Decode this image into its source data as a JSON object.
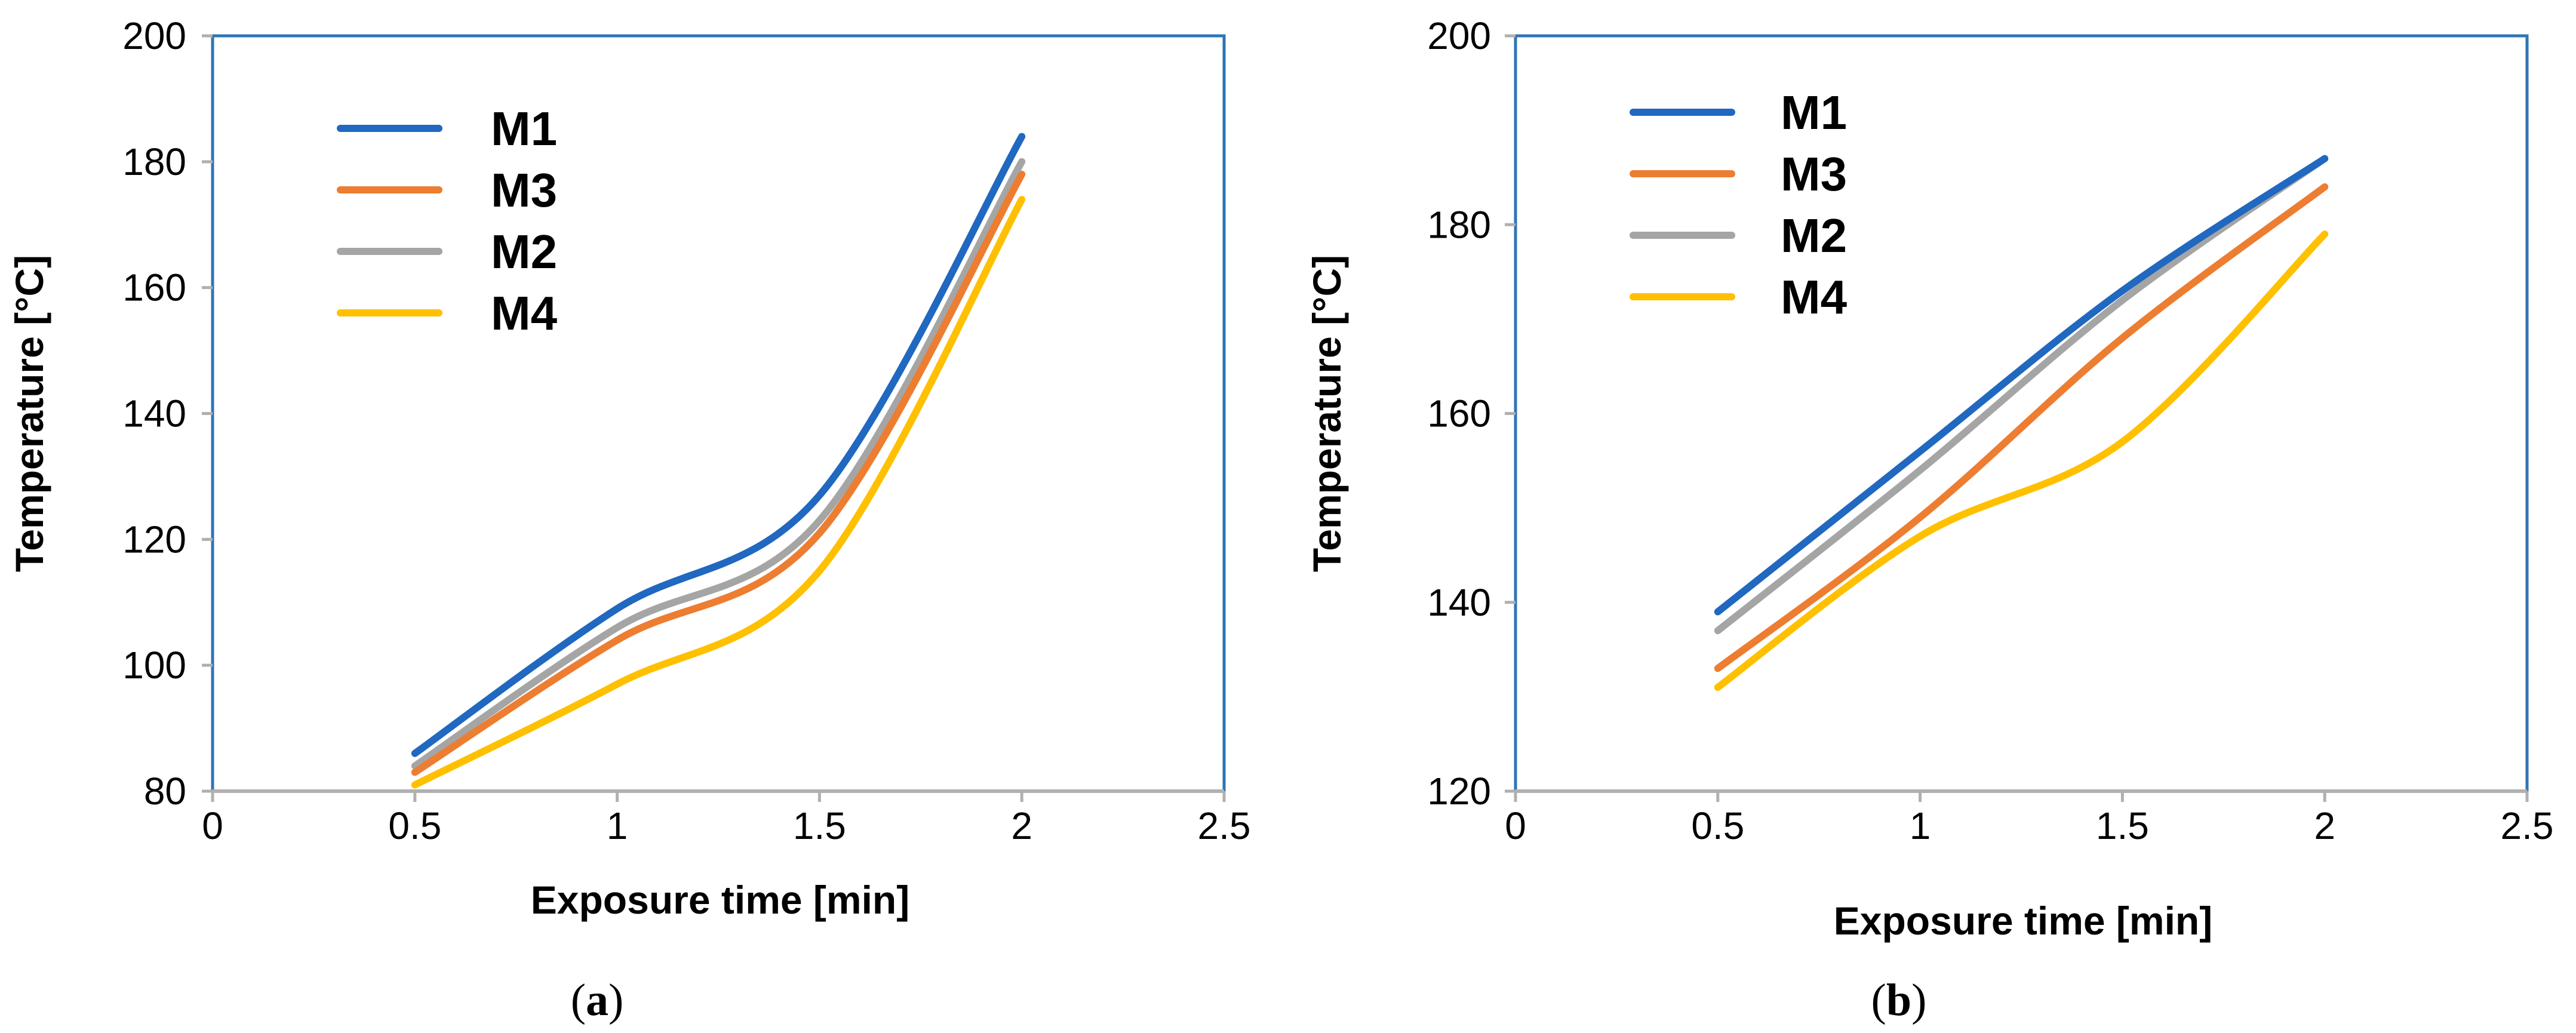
{
  "colors": {
    "frame": "#2E75B6",
    "axis": "#B0B0B0",
    "M1": "#2068C0",
    "M2": "#A5A5A5",
    "M3": "#ED7D31",
    "M4": "#FFC000"
  },
  "chart_data": [
    {
      "type": "line",
      "panel": "a",
      "caption": "(a)",
      "caption_open": "(",
      "caption_letter": "a",
      "caption_close": ")",
      "title": "",
      "xlabel": "Exposure time [min]",
      "ylabel": "Temperature [°C]",
      "xlim": [
        0,
        2.5
      ],
      "ylim": [
        80,
        200
      ],
      "xticks": [
        0,
        0.5,
        1,
        1.5,
        2,
        2.5
      ],
      "xtick_labels": [
        "0",
        "0.5",
        "1",
        "1.5",
        "2",
        "2.5"
      ],
      "yticks": [
        80,
        100,
        120,
        140,
        160,
        180,
        200
      ],
      "ytick_labels": [
        "80",
        "100",
        "120",
        "140",
        "160",
        "180",
        "200"
      ],
      "legend_position": "top-left",
      "legend_order": [
        "M1",
        "M3",
        "M2",
        "M4"
      ],
      "x": [
        0.5,
        1,
        1.5,
        2
      ],
      "series": [
        {
          "name": "M1",
          "values": [
            86,
            109,
            127,
            184
          ]
        },
        {
          "name": "M3",
          "values": [
            83,
            104,
            121,
            178
          ]
        },
        {
          "name": "M2",
          "values": [
            84,
            106,
            123,
            180
          ]
        },
        {
          "name": "M4",
          "values": [
            81,
            97,
            115,
            174
          ]
        }
      ]
    },
    {
      "type": "line",
      "panel": "b",
      "caption": "(b)",
      "caption_open": "(",
      "caption_letter": "b",
      "caption_close": ")",
      "title": "",
      "xlabel": "Exposure time [min]",
      "ylabel": "Temperature [°C]",
      "xlim": [
        0,
        2.5
      ],
      "ylim": [
        120,
        200
      ],
      "xticks": [
        0,
        0.5,
        1,
        1.5,
        2,
        2.5
      ],
      "xtick_labels": [
        "0",
        "0.5",
        "1",
        "1.5",
        "2",
        "2.5"
      ],
      "yticks": [
        120,
        140,
        160,
        180,
        200
      ],
      "ytick_labels": [
        "120",
        "140",
        "160",
        "180",
        "200"
      ],
      "legend_position": "top-left",
      "legend_order": [
        "M1",
        "M3",
        "M2",
        "M4"
      ],
      "x": [
        0.5,
        1,
        1.5,
        2
      ],
      "series": [
        {
          "name": "M1",
          "values": [
            139,
            156,
            173,
            187
          ]
        },
        {
          "name": "M3",
          "values": [
            133,
            149,
            168,
            184
          ]
        },
        {
          "name": "M2",
          "values": [
            137,
            154,
            172,
            187
          ]
        },
        {
          "name": "M4",
          "values": [
            131,
            147,
            157,
            179
          ]
        }
      ]
    }
  ]
}
